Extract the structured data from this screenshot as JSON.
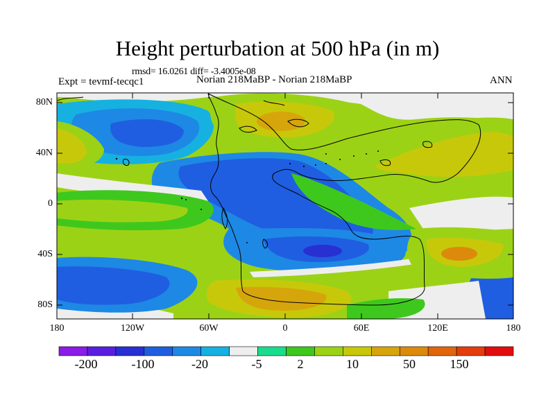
{
  "title": "Height perturbation at 500 hPa (in m)",
  "stats": "rmsd= 16.0261 diff= -3.4005e-08",
  "experiment": "Expt = tevmf-tecqc1",
  "experiment_name": "Norian 218MaBP - Norian 218MaBP",
  "season": "ANN",
  "lat_labels": [
    "80N",
    "40N",
    "0",
    "40S",
    "80S"
  ],
  "lon_labels": [
    "180",
    "120W",
    "60W",
    "0",
    "60E",
    "120E",
    "180"
  ],
  "colorbar": {
    "labels": [
      "-200",
      "-100",
      "-20",
      "-5",
      "2",
      "10",
      "50",
      "150"
    ],
    "colors": [
      "#8a1be8",
      "#5a1ee0",
      "#2830d2",
      "#1f5ee0",
      "#1e88e5",
      "#16b1e0",
      "#eeeeee",
      "#19dd8c",
      "#3ec81e",
      "#9cd215",
      "#c8c80a",
      "#d6a50c",
      "#dc8a0c",
      "#e0650c",
      "#e43c0c",
      "#e20d0d"
    ]
  },
  "colors": {
    "background_field": "#9cd215",
    "neg_strong": "#2830d2",
    "neg_mid": "#1f5ee0",
    "neg_light": "#1e88e5",
    "neg_weak": "#16b1e0",
    "neutral": "#eeeeee",
    "pos_weak": "#19dd8c",
    "pos_light": "#3ec81e",
    "pos_mid": "#9cd215",
    "pos_strong": "#c8c80a",
    "pos_peak": "#d6a50c",
    "pos_high": "#dc8a0c"
  }
}
